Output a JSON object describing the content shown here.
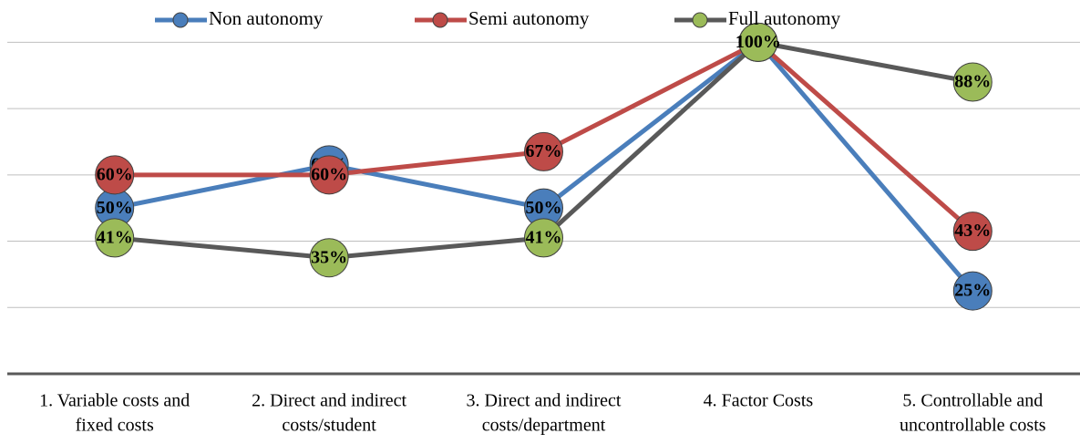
{
  "chart_data": {
    "type": "line",
    "categories": [
      [
        "1. Variable costs and",
        "fixed costs"
      ],
      [
        "2. Direct and indirect",
        "costs/student"
      ],
      [
        "3. Direct and indirect",
        "costs/department"
      ],
      [
        "4. Factor Costs"
      ],
      [
        "5. Controllable and",
        "uncontrollable costs"
      ]
    ],
    "series": [
      {
        "name": "Non autonomy",
        "color": "#4a7ebb",
        "marker_color": "#4a7ebb",
        "values": [
          50,
          63,
          50,
          100,
          25
        ],
        "value_labels": [
          "50%",
          "63%",
          "50%",
          "100%",
          "25%"
        ]
      },
      {
        "name": "Semi autonomy",
        "color": "#be4b48",
        "marker_color": "#be4b48",
        "values": [
          60,
          60,
          67,
          100,
          43
        ],
        "value_labels": [
          "60%",
          "60%",
          "67%",
          "100%",
          "43%"
        ]
      },
      {
        "name": "Full autonomy",
        "color": "#595959",
        "marker_color": "#9bbb59",
        "values": [
          41,
          35,
          41,
          100,
          88
        ],
        "value_labels": [
          "41%",
          "35%",
          "41%",
          "100%",
          "88%"
        ]
      }
    ],
    "ylim": [
      0,
      110
    ],
    "yticks": [
      0,
      20,
      40,
      60,
      80,
      100
    ],
    "grid": true,
    "legend": "top"
  }
}
